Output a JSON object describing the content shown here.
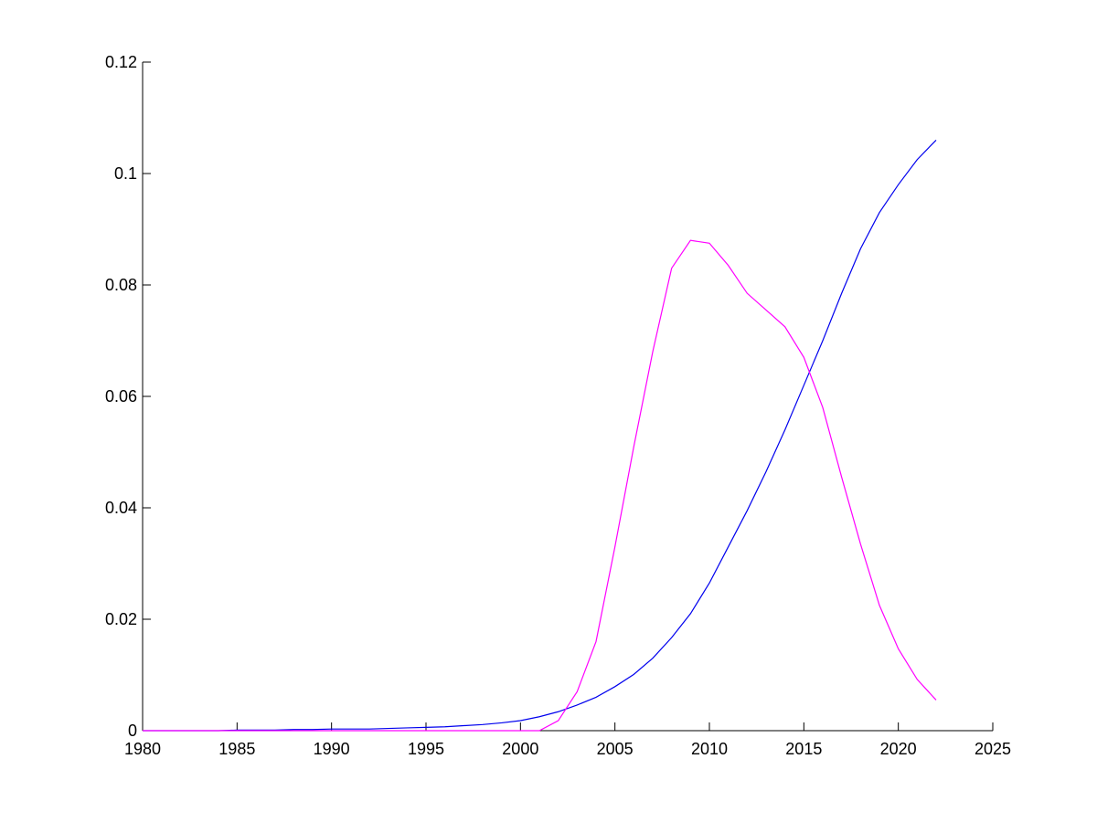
{
  "chart_data": {
    "type": "line",
    "x": [
      1980,
      1981,
      1982,
      1983,
      1984,
      1985,
      1986,
      1987,
      1988,
      1989,
      1990,
      1991,
      1992,
      1993,
      1994,
      1995,
      1996,
      1997,
      1998,
      1999,
      2000,
      2001,
      2002,
      2003,
      2004,
      2005,
      2006,
      2007,
      2008,
      2009,
      2010,
      2011,
      2012,
      2013,
      2014,
      2015,
      2016,
      2017,
      2018,
      2019,
      2020,
      2021,
      2022
    ],
    "series": [
      {
        "color": "#0000ee",
        "values": [
          0,
          0,
          0,
          0,
          0,
          0.0001,
          0.0001,
          0.0001,
          0.0002,
          0.0002,
          0.0003,
          0.0003,
          0.0003,
          0.0004,
          0.0005,
          0.0006,
          0.0007,
          0.0009,
          0.0011,
          0.0014,
          0.0018,
          0.0025,
          0.0034,
          0.0046,
          0.006,
          0.0079,
          0.0101,
          0.013,
          0.0167,
          0.021,
          0.0265,
          0.033,
          0.0395,
          0.0465,
          0.054,
          0.062,
          0.07,
          0.0785,
          0.0865,
          0.093,
          0.098,
          0.1025,
          0.106
        ]
      },
      {
        "color": "#ff00ff",
        "values": [
          0,
          0,
          0,
          0,
          0,
          0,
          0,
          0,
          0,
          0,
          0,
          0,
          0,
          0,
          0,
          0,
          0,
          0,
          0,
          0,
          0,
          0,
          0.0018,
          0.007,
          0.016,
          0.033,
          0.051,
          0.068,
          0.083,
          0.088,
          0.0875,
          0.0835,
          0.0785,
          0.0755,
          0.0725,
          0.067,
          0.058,
          0.0455,
          0.0335,
          0.0225,
          0.0147,
          0.0092,
          0.0055
        ]
      }
    ],
    "xlim": [
      1980,
      2025
    ],
    "xticks": [
      1980,
      1985,
      1990,
      1995,
      2000,
      2005,
      2010,
      2015,
      2020,
      2025
    ],
    "ylim": [
      0,
      0.12
    ],
    "yticks": [
      0,
      0.02,
      0.04,
      0.06,
      0.08,
      0.1,
      0.12
    ]
  }
}
